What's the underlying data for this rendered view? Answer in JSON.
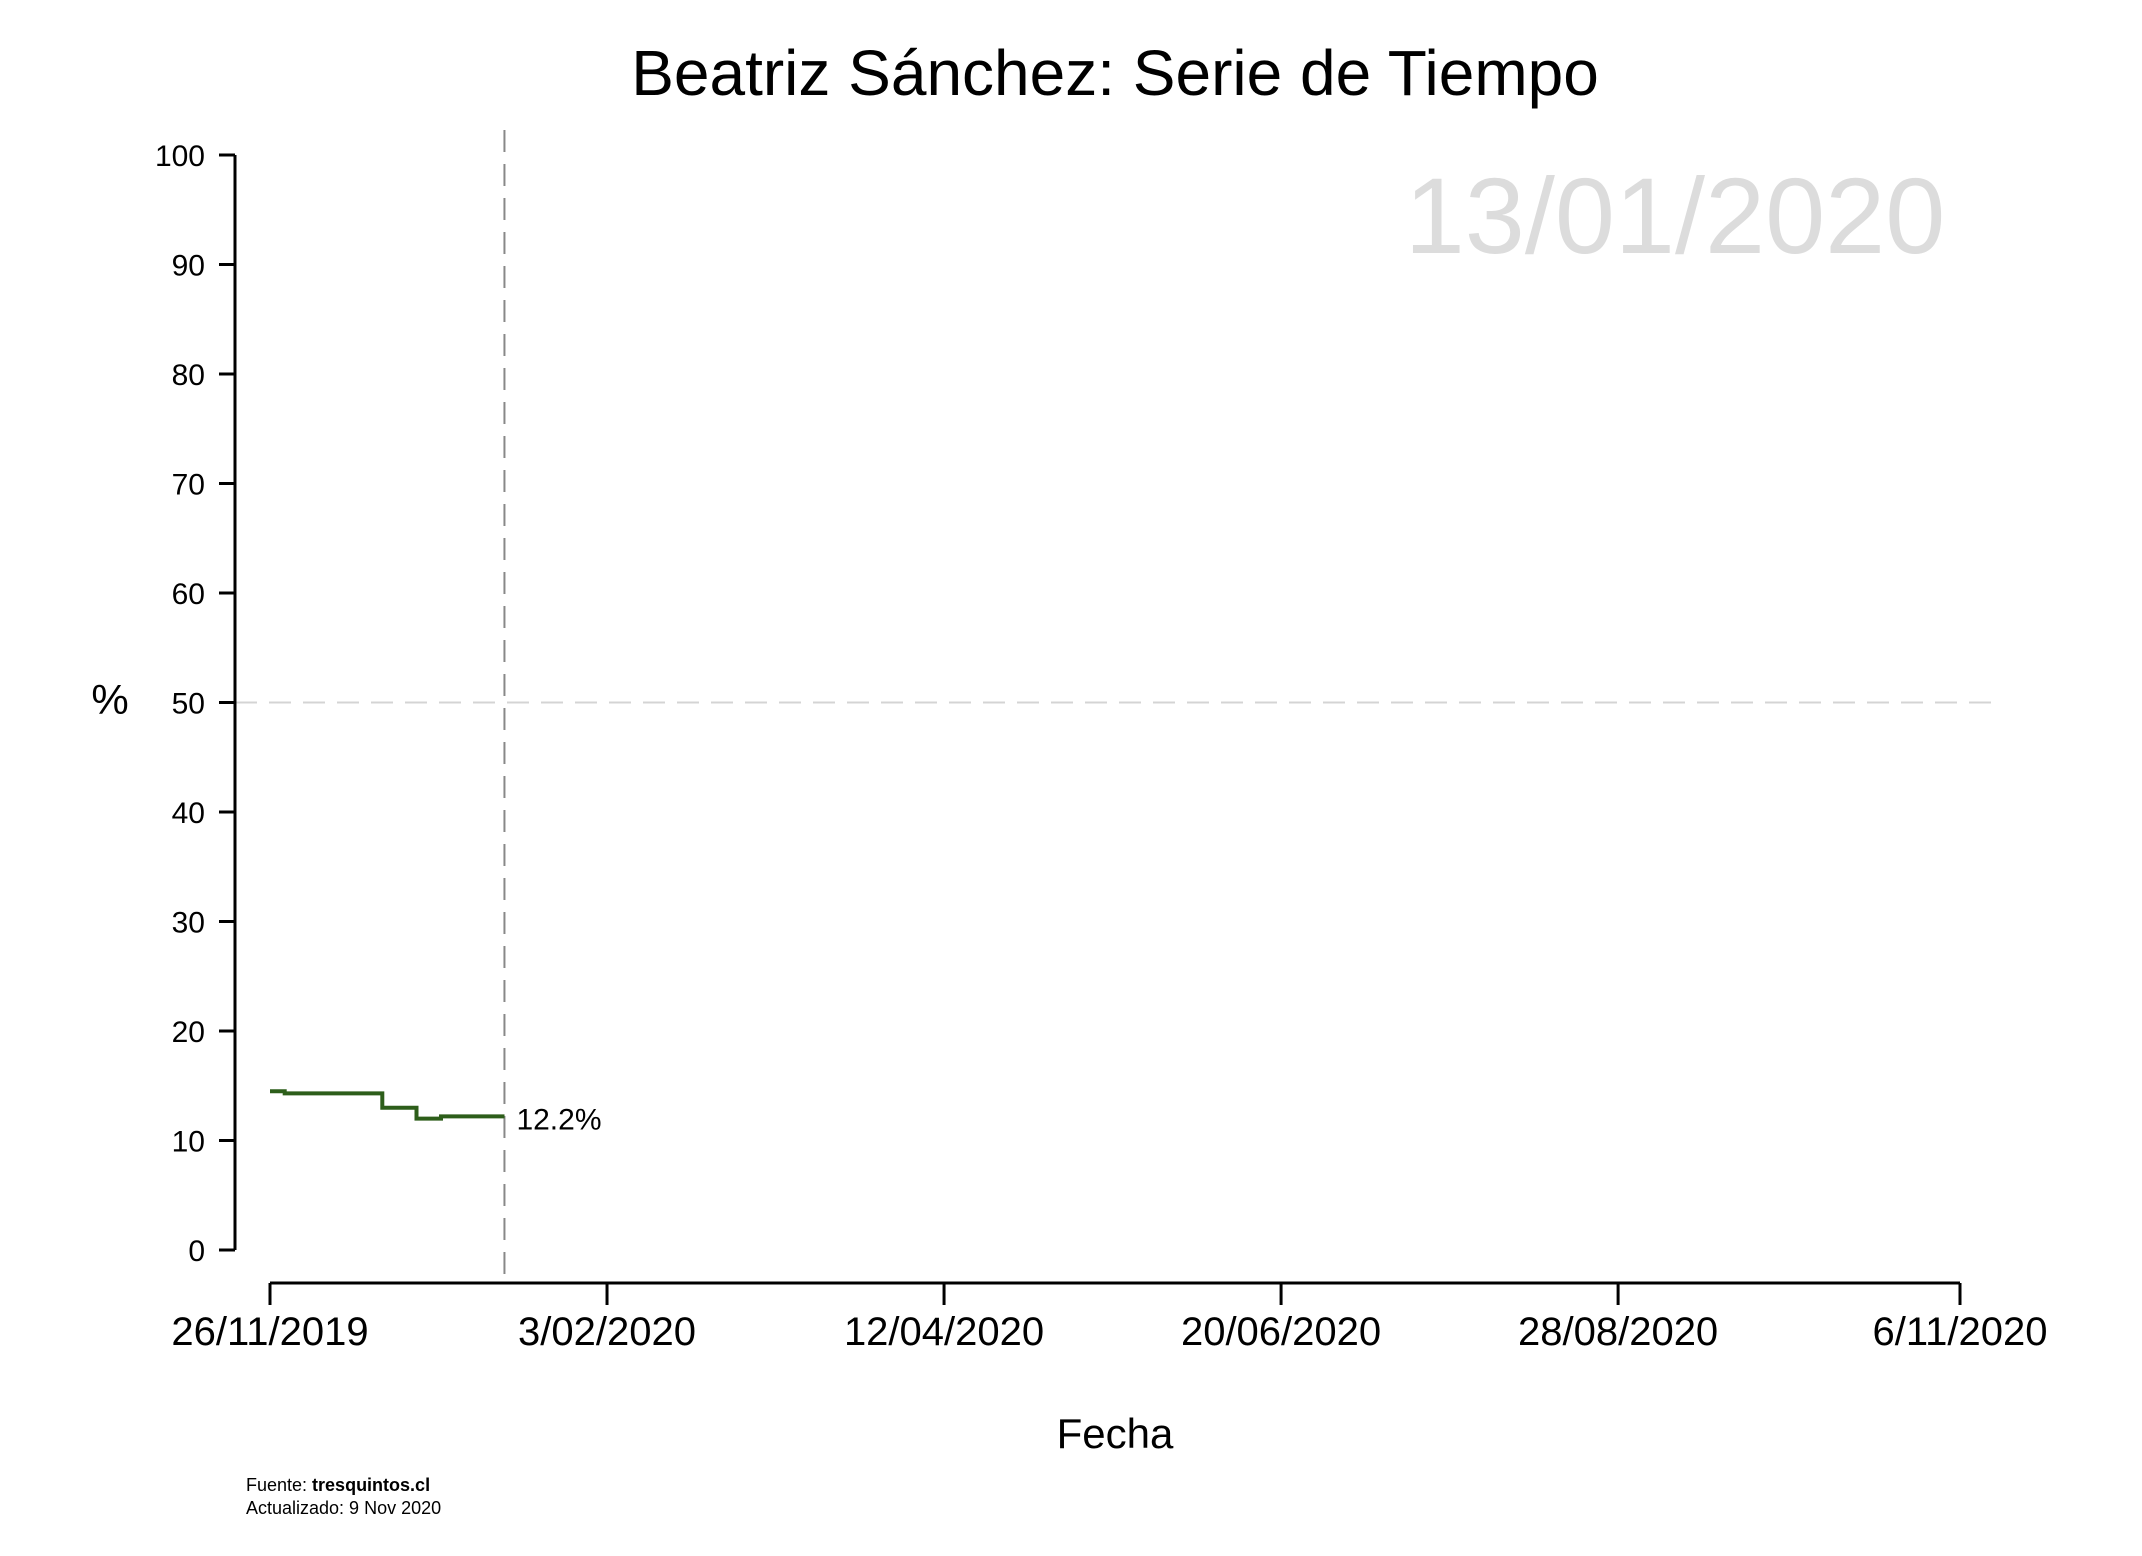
{
  "chart_data": {
    "type": "line",
    "title": "Beatriz Sánchez: Serie de Tiempo",
    "watermark_date": "13/01/2020",
    "xlabel": "Fecha",
    "ylabel": "%",
    "ylim": [
      0,
      100
    ],
    "yticks": [
      0,
      10,
      20,
      30,
      40,
      50,
      60,
      70,
      80,
      90,
      100
    ],
    "xlim": [
      "2019-11-26",
      "2020-11-06"
    ],
    "xticks": [
      {
        "date": "2019-11-26",
        "label": "26/11/2019"
      },
      {
        "date": "2020-02-03",
        "label": "3/02/2020"
      },
      {
        "date": "2020-04-12",
        "label": "12/04/2020"
      },
      {
        "date": "2020-06-20",
        "label": "20/06/2020"
      },
      {
        "date": "2020-08-28",
        "label": "28/08/2020"
      },
      {
        "date": "2020-11-06",
        "label": "6/11/2020"
      }
    ],
    "reference_line_y": 50,
    "current_date_line": "2020-01-13",
    "line_style": "step",
    "series": [
      {
        "color": "#2d5e1a",
        "points": [
          {
            "x": "2019-11-26",
            "y": 14.5
          },
          {
            "x": "2019-11-29",
            "y": 14.3
          },
          {
            "x": "2019-12-19",
            "y": 13.0
          },
          {
            "x": "2019-12-26",
            "y": 12.0
          },
          {
            "x": "2019-12-31",
            "y": 12.2
          },
          {
            "x": "2020-01-13",
            "y": 12.2
          }
        ]
      }
    ],
    "end_label": "12.2%"
  },
  "source": {
    "prefix": "Fuente: ",
    "site": "tresquintos.cl",
    "updated": "Actualizado: 9 Nov 2020"
  },
  "colors": {
    "series": "#2d5e1a",
    "watermark": "#dcdcdc",
    "reference_line": "#d4d4d4",
    "current_date_line": "#888888",
    "axis": "#000000"
  }
}
